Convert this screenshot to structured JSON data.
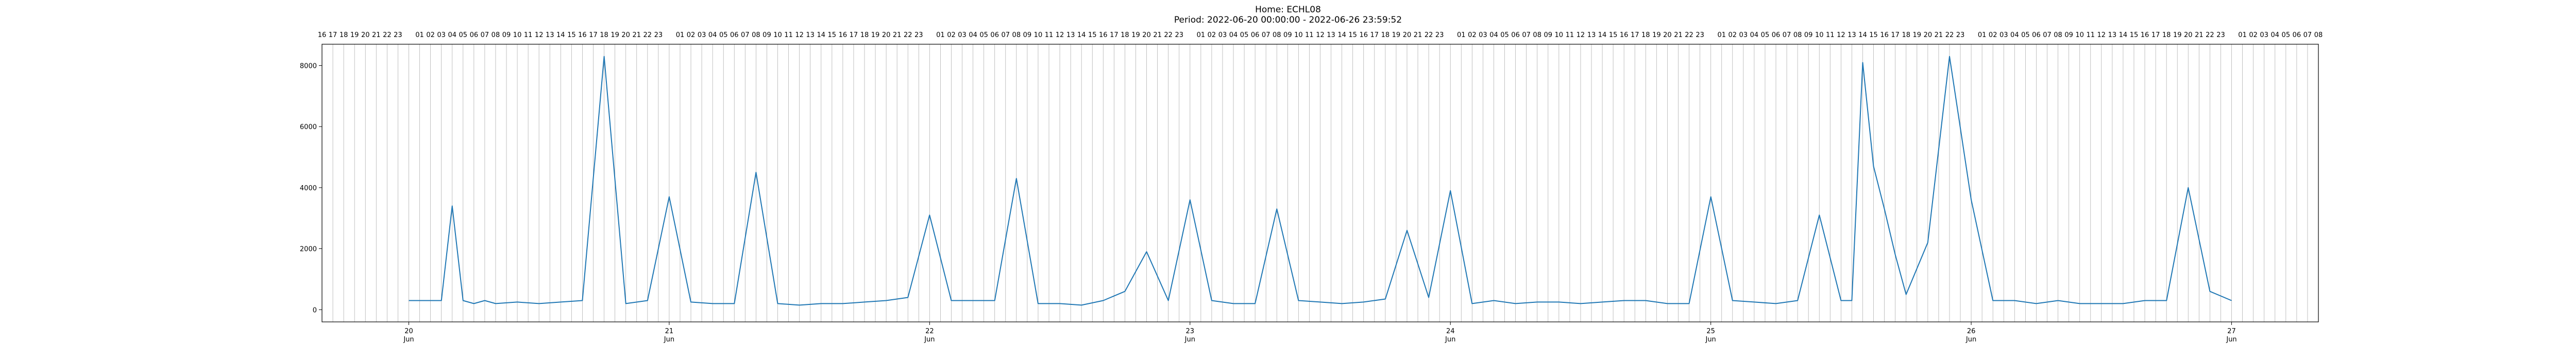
{
  "chart_data": {
    "type": "line",
    "title": "Home: ECHL08",
    "subtitle": "Period: 2022-06-20 00:00:00 - 2022-06-26 23:59:52",
    "xlabel": "",
    "ylabel": "",
    "ylim": [
      -400,
      8700
    ],
    "xlim": [
      "2022-06-19 16:00",
      "2022-06-27 08:00"
    ],
    "grid": "vertical hourly lines",
    "line_color": "#1f77b4",
    "y_ticks": [
      0,
      2000,
      4000,
      6000,
      8000
    ],
    "x_ticks": [
      {
        "date": "2022-06-20",
        "day": "20",
        "month": "Jun"
      },
      {
        "date": "2022-06-21",
        "day": "21",
        "month": "Jun"
      },
      {
        "date": "2022-06-22",
        "day": "22",
        "month": "Jun"
      },
      {
        "date": "2022-06-23",
        "day": "23",
        "month": "Jun"
      },
      {
        "date": "2022-06-24",
        "day": "24",
        "month": "Jun"
      },
      {
        "date": "2022-06-25",
        "day": "25",
        "month": "Jun"
      },
      {
        "date": "2022-06-26",
        "day": "26",
        "month": "Jun"
      },
      {
        "date": "2022-06-27",
        "day": "27",
        "month": "Jun"
      }
    ],
    "top_hour_labels": [
      "16",
      "17",
      "18",
      "19",
      "20",
      "21",
      "22",
      "23",
      "",
      "01",
      "02",
      "03",
      "04",
      "05",
      "06",
      "07",
      "08",
      "09",
      "10",
      "11",
      "12",
      "13",
      "14",
      "15",
      "16",
      "17",
      "18",
      "19",
      "20",
      "21",
      "22",
      "23",
      "",
      "01",
      "02",
      "03",
      "04",
      "05",
      "06",
      "07",
      "08",
      "09",
      "10",
      "11",
      "12",
      "13",
      "14",
      "15",
      "16",
      "17",
      "18",
      "19",
      "20",
      "21",
      "22",
      "23",
      "",
      "01",
      "02",
      "03",
      "04",
      "05",
      "06",
      "07",
      "08",
      "09",
      "10",
      "11",
      "12",
      "13",
      "14",
      "15",
      "16",
      "17",
      "18",
      "19",
      "20",
      "21",
      "22",
      "23",
      "",
      "01",
      "02",
      "03",
      "04",
      "05",
      "06",
      "07",
      "08",
      "09",
      "10",
      "11",
      "12",
      "13",
      "14",
      "15",
      "16",
      "17",
      "18",
      "19",
      "20",
      "21",
      "22",
      "23",
      "",
      "01",
      "02",
      "03",
      "04",
      "05",
      "06",
      "07",
      "08",
      "09",
      "10",
      "11",
      "12",
      "13",
      "14",
      "15",
      "16",
      "17",
      "18",
      "19",
      "20",
      "21",
      "22",
      "23",
      "",
      "01",
      "02",
      "03",
      "04",
      "05",
      "06",
      "07",
      "08",
      "09",
      "10",
      "11",
      "12",
      "13",
      "14",
      "15",
      "16",
      "17",
      "18",
      "19",
      "20",
      "21",
      "22",
      "23",
      "",
      "01",
      "02",
      "03",
      "04",
      "05",
      "06",
      "07",
      "08",
      "09",
      "10",
      "11",
      "12",
      "13",
      "14",
      "15",
      "16",
      "17",
      "18",
      "19",
      "20",
      "21",
      "22",
      "23",
      "",
      "01",
      "02",
      "03",
      "04",
      "05",
      "06",
      "07",
      "08"
    ],
    "series": [
      {
        "x": [
          "2022-06-20 00:00",
          "2022-06-20 03:00",
          "2022-06-20 04:00",
          "2022-06-20 05:00",
          "2022-06-20 06:00",
          "2022-06-20 07:00",
          "2022-06-20 08:00",
          "2022-06-20 10:00",
          "2022-06-20 12:00",
          "2022-06-20 14:00",
          "2022-06-20 16:00",
          "2022-06-20 18:00",
          "2022-06-20 20:00",
          "2022-06-20 22:00",
          "2022-06-21 00:00",
          "2022-06-21 02:00",
          "2022-06-21 04:00",
          "2022-06-21 06:00",
          "2022-06-21 08:00",
          "2022-06-21 10:00",
          "2022-06-21 12:00",
          "2022-06-21 14:00",
          "2022-06-21 16:00",
          "2022-06-21 18:00",
          "2022-06-21 20:00",
          "2022-06-21 22:00",
          "2022-06-22 00:00",
          "2022-06-22 02:00",
          "2022-06-22 04:00",
          "2022-06-22 06:00",
          "2022-06-22 08:00",
          "2022-06-22 10:00",
          "2022-06-22 12:00",
          "2022-06-22 14:00",
          "2022-06-22 16:00",
          "2022-06-22 18:00",
          "2022-06-22 20:00",
          "2022-06-22 22:00",
          "2022-06-23 00:00",
          "2022-06-23 02:00",
          "2022-06-23 04:00",
          "2022-06-23 06:00",
          "2022-06-23 08:00",
          "2022-06-23 10:00",
          "2022-06-23 12:00",
          "2022-06-23 14:00",
          "2022-06-23 16:00",
          "2022-06-23 18:00",
          "2022-06-23 20:00",
          "2022-06-23 22:00",
          "2022-06-24 00:00",
          "2022-06-24 02:00",
          "2022-06-24 04:00",
          "2022-06-24 06:00",
          "2022-06-24 08:00",
          "2022-06-24 10:00",
          "2022-06-24 12:00",
          "2022-06-24 14:00",
          "2022-06-24 16:00",
          "2022-06-24 18:00",
          "2022-06-24 20:00",
          "2022-06-24 22:00",
          "2022-06-25 00:00",
          "2022-06-25 02:00",
          "2022-06-25 04:00",
          "2022-06-25 06:00",
          "2022-06-25 08:00",
          "2022-06-25 10:00",
          "2022-06-25 12:00",
          "2022-06-25 13:00",
          "2022-06-25 14:00",
          "2022-06-25 15:00",
          "2022-06-25 16:00",
          "2022-06-25 17:00",
          "2022-06-25 18:00",
          "2022-06-25 20:00",
          "2022-06-25 22:00",
          "2022-06-26 00:00",
          "2022-06-26 02:00",
          "2022-06-26 04:00",
          "2022-06-26 06:00",
          "2022-06-26 08:00",
          "2022-06-26 10:00",
          "2022-06-26 12:00",
          "2022-06-26 14:00",
          "2022-06-26 16:00",
          "2022-06-26 18:00",
          "2022-06-26 20:00",
          "2022-06-26 22:00",
          "2022-06-27 00:00"
        ],
        "y": [
          300,
          300,
          3400,
          300,
          200,
          300,
          200,
          250,
          200,
          250,
          300,
          8300,
          200,
          300,
          3700,
          250,
          200,
          200,
          4500,
          200,
          150,
          200,
          200,
          250,
          300,
          400,
          3100,
          300,
          300,
          300,
          4300,
          200,
          200,
          150,
          300,
          600,
          1900,
          300,
          3600,
          300,
          200,
          200,
          3300,
          300,
          250,
          200,
          250,
          350,
          2600,
          400,
          3900,
          200,
          300,
          200,
          250,
          250,
          200,
          250,
          300,
          300,
          200,
          200,
          3700,
          300,
          250,
          200,
          300,
          3100,
          300,
          300,
          8100,
          4700,
          3300,
          1800,
          500,
          2200,
          8300,
          3600,
          300,
          300,
          200,
          300,
          200,
          200,
          200,
          300,
          300,
          4000,
          600,
          300
        ]
      }
    ]
  }
}
